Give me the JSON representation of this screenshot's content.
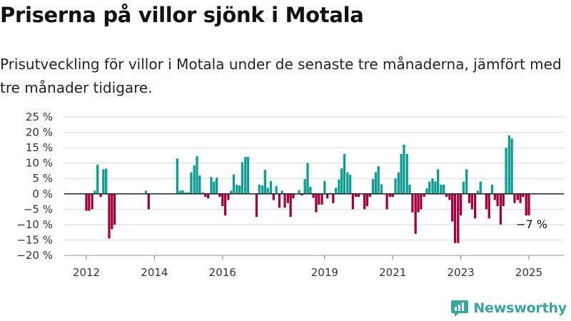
{
  "header": {
    "title": "Priserna på villor sjönk i Motala",
    "subtitle": "Prisutveckling för villor i Motala under de senaste tre månaderna, jämfört med tre månader tidigare."
  },
  "brand": {
    "name": "Newsworthy",
    "icon": "newsworthy-logo-icon",
    "color": "#39a69c"
  },
  "colors": {
    "positive": "#0f9c94",
    "negative": "#a1003f",
    "grid": "#d9d9d9",
    "zero_line": "#222222"
  },
  "chart_data": {
    "type": "bar",
    "ylim": [
      -20,
      25
    ],
    "y_ticks": [
      25,
      20,
      15,
      10,
      5,
      0,
      -5,
      -10,
      -15,
      -20
    ],
    "y_tick_labels": [
      "25 %",
      "20 %",
      "15 %",
      "10 %",
      "5 %",
      "0 %",
      "−5 %",
      "−10 %",
      "−15 %",
      "−20 %"
    ],
    "x_ticks": [
      2012,
      2014,
      2016,
      2019,
      2021,
      2023,
      2025
    ],
    "x_tick_labels": [
      "2012",
      "2014",
      "2016",
      "2019",
      "2021",
      "2023",
      "2025"
    ],
    "grid": true,
    "annotation": {
      "text": "−7 %",
      "x": 2025.0,
      "y": -7
    },
    "series": [
      {
        "points": [
          [
            2012.0,
            -5.5
          ],
          [
            2012.08,
            -5.5
          ],
          [
            2012.17,
            -5
          ],
          [
            2012.25,
            1
          ],
          [
            2012.33,
            9.5
          ],
          [
            2012.42,
            -1
          ],
          [
            2012.5,
            8
          ],
          [
            2012.58,
            8.2
          ],
          [
            2012.67,
            -14.5
          ],
          [
            2012.75,
            -11.5
          ],
          [
            2012.83,
            -10
          ],
          [
            2013.75,
            1
          ],
          [
            2013.83,
            -5
          ],
          [
            2014.67,
            11.5
          ],
          [
            2014.75,
            1
          ],
          [
            2014.83,
            1.2
          ],
          [
            2014.92,
            0.5
          ],
          [
            2015.0,
            0.5
          ],
          [
            2015.08,
            7
          ],
          [
            2015.17,
            9.3
          ],
          [
            2015.25,
            12.2
          ],
          [
            2015.33,
            6
          ],
          [
            2015.42,
            0.5
          ],
          [
            2015.5,
            -1
          ],
          [
            2015.58,
            -1.5
          ],
          [
            2015.67,
            5.5
          ],
          [
            2015.75,
            4
          ],
          [
            2015.83,
            5.3
          ],
          [
            2015.92,
            -1
          ],
          [
            2016.0,
            -4
          ],
          [
            2016.08,
            -7
          ],
          [
            2016.17,
            -2
          ],
          [
            2016.25,
            1
          ],
          [
            2016.33,
            6.3
          ],
          [
            2016.42,
            3
          ],
          [
            2016.5,
            2.7
          ],
          [
            2016.58,
            10.3
          ],
          [
            2016.67,
            12
          ],
          [
            2016.75,
            12
          ],
          [
            2017.0,
            -7.5
          ],
          [
            2017.08,
            3
          ],
          [
            2017.17,
            2.7
          ],
          [
            2017.25,
            7.8
          ],
          [
            2017.33,
            2
          ],
          [
            2017.42,
            4.2
          ],
          [
            2017.5,
            -2
          ],
          [
            2017.58,
            2.5
          ],
          [
            2017.67,
            -4.5
          ],
          [
            2017.75,
            1
          ],
          [
            2017.83,
            -4.5
          ],
          [
            2017.92,
            -3
          ],
          [
            2018.0,
            -7.5
          ],
          [
            2018.08,
            -1.5
          ],
          [
            2018.25,
            1.2
          ],
          [
            2018.33,
            -0.5
          ],
          [
            2018.42,
            4.8
          ],
          [
            2018.5,
            10
          ],
          [
            2018.58,
            2.3
          ],
          [
            2018.67,
            -1.3
          ],
          [
            2018.75,
            -6
          ],
          [
            2018.83,
            -3.5
          ],
          [
            2018.92,
            -3.5
          ],
          [
            2019.0,
            4.2
          ],
          [
            2019.08,
            -1.5
          ],
          [
            2019.17,
            0.3
          ],
          [
            2019.25,
            -3
          ],
          [
            2019.33,
            2
          ],
          [
            2019.42,
            4.7
          ],
          [
            2019.5,
            8.3
          ],
          [
            2019.58,
            13
          ],
          [
            2019.67,
            7
          ],
          [
            2019.75,
            6.2
          ],
          [
            2019.83,
            -5
          ],
          [
            2019.92,
            -1
          ],
          [
            2020.0,
            -1
          ],
          [
            2020.17,
            -5
          ],
          [
            2020.25,
            -4
          ],
          [
            2020.33,
            -1
          ],
          [
            2020.42,
            4.8
          ],
          [
            2020.5,
            7
          ],
          [
            2020.58,
            9
          ],
          [
            2020.67,
            3.1
          ],
          [
            2020.83,
            -5
          ],
          [
            2020.92,
            -1
          ],
          [
            2021.0,
            -1
          ],
          [
            2021.08,
            5
          ],
          [
            2021.17,
            7
          ],
          [
            2021.25,
            13
          ],
          [
            2021.33,
            16
          ],
          [
            2021.42,
            13
          ],
          [
            2021.5,
            3
          ],
          [
            2021.58,
            -6
          ],
          [
            2021.67,
            -13
          ],
          [
            2021.75,
            -6
          ],
          [
            2021.83,
            -5
          ],
          [
            2021.92,
            -1
          ],
          [
            2022.0,
            1.8
          ],
          [
            2022.08,
            4
          ],
          [
            2022.17,
            5
          ],
          [
            2022.25,
            4
          ],
          [
            2022.33,
            8
          ],
          [
            2022.42,
            3
          ],
          [
            2022.5,
            3
          ],
          [
            2022.58,
            -1
          ],
          [
            2022.67,
            -2
          ],
          [
            2022.75,
            -9
          ],
          [
            2022.83,
            -16
          ],
          [
            2022.92,
            -16
          ],
          [
            2023.0,
            -7
          ],
          [
            2023.08,
            4
          ],
          [
            2023.17,
            8
          ],
          [
            2023.25,
            -3
          ],
          [
            2023.33,
            -5
          ],
          [
            2023.42,
            -8
          ],
          [
            2023.5,
            1
          ],
          [
            2023.58,
            4
          ],
          [
            2023.75,
            -5
          ],
          [
            2023.83,
            -8
          ],
          [
            2023.92,
            3
          ],
          [
            2024.0,
            -2
          ],
          [
            2024.08,
            -4
          ],
          [
            2024.17,
            -10
          ],
          [
            2024.25,
            -4
          ],
          [
            2024.33,
            15
          ],
          [
            2024.42,
            19
          ],
          [
            2024.5,
            18
          ],
          [
            2024.58,
            -3
          ],
          [
            2024.67,
            -2
          ],
          [
            2024.75,
            -3
          ],
          [
            2024.83,
            -1
          ],
          [
            2024.92,
            -7
          ],
          [
            2025.0,
            -7
          ]
        ]
      }
    ]
  }
}
